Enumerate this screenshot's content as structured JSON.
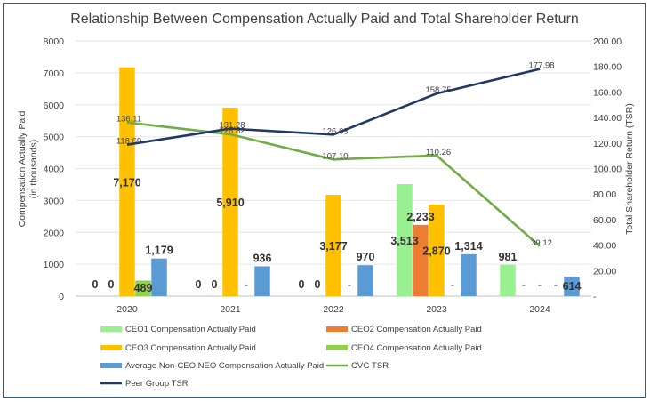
{
  "chart_data": {
    "type": "bar",
    "title": "Relationship Between Compensation Actually Paid and Total Shareholder Return",
    "categories": [
      "2020",
      "2021",
      "2022",
      "2023",
      "2024"
    ],
    "ylabel_left_line1": "Compensation Actually Paid",
    "ylabel_left_line2": "(in thousands)",
    "ylabel_right": "Total Shareholder Return (TSR)",
    "ylim_left": [
      0,
      8000
    ],
    "ylim_right": [
      0,
      200
    ],
    "left_ticks": [
      "0",
      "1000",
      "2000",
      "3000",
      "4000",
      "5000",
      "6000",
      "7000",
      "8000"
    ],
    "right_ticks": [
      "-",
      "20.00",
      "40.00",
      "60.00",
      "80.00",
      "100.00",
      "120.00",
      "140.00",
      "160.00",
      "180.00",
      "200.00"
    ],
    "bar_series": [
      {
        "name": "CEO1 Compensation Actually Paid",
        "color": "#99f090",
        "values": [
          0,
          0,
          0,
          3513,
          981
        ],
        "labels": [
          "0",
          "0",
          "0",
          "3,513",
          "981"
        ]
      },
      {
        "name": "CEO2 Compensation Actually Paid",
        "color": "#ed7d31",
        "values": [
          0,
          0,
          0,
          2233,
          0
        ],
        "labels": [
          "0",
          "0",
          "0",
          "2,233",
          "-"
        ]
      },
      {
        "name": "CEO3 Compensation Actually Paid",
        "color": "#ffc000",
        "values": [
          7170,
          5910,
          3177,
          2870,
          0
        ],
        "labels": [
          "7,170",
          "5,910",
          "3,177",
          "2,870",
          "-"
        ]
      },
      {
        "name": "CEO4 Compensation Actually Paid",
        "color": "#92d050",
        "values": [
          489,
          0,
          0,
          0,
          0
        ],
        "labels": [
          "489",
          "-",
          "-",
          "-",
          "-"
        ]
      },
      {
        "name": "Average Non-CEO NEO Compensation Actually Paid",
        "color": "#5b9bd5",
        "values": [
          1179,
          936,
          970,
          1314,
          614
        ],
        "labels": [
          "1,179",
          "936",
          "970",
          "1,314",
          "614"
        ]
      }
    ],
    "line_series": [
      {
        "name": "CVG TSR",
        "color": "#70ad47",
        "values": [
          136.11,
          126.82,
          107.1,
          110.26,
          39.12
        ],
        "labels": [
          "136.11",
          "126.82",
          "107.10",
          "110.26",
          "39.12"
        ]
      },
      {
        "name": "Peer Group TSR",
        "color": "#203864",
        "values": [
          118.69,
          131.28,
          126.63,
          158.75,
          177.98
        ],
        "labels": [
          "118.69",
          "131.28",
          "126.63",
          "158.75",
          "177.98"
        ]
      }
    ]
  }
}
